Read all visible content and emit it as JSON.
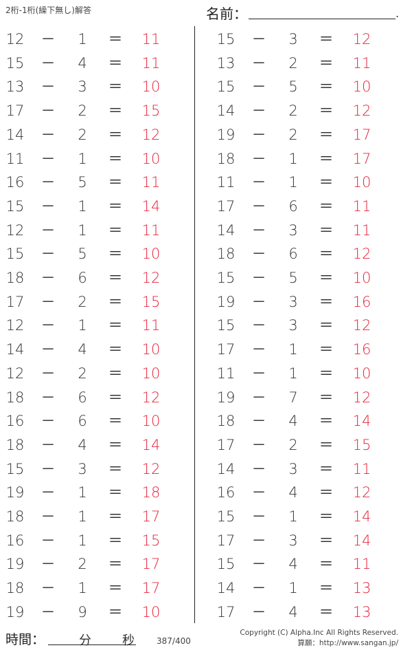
{
  "header": {
    "title": "2桁-1桁(繰下無し)解答",
    "name_label": "名前：",
    "name_end": "."
  },
  "colors": {
    "answer": "#e8223a",
    "text": "#333333"
  },
  "symbols": {
    "minus": "－",
    "equals": "＝"
  },
  "left_column": [
    {
      "a": "12",
      "b": "1",
      "ans": "11"
    },
    {
      "a": "15",
      "b": "4",
      "ans": "11"
    },
    {
      "a": "13",
      "b": "3",
      "ans": "10"
    },
    {
      "a": "17",
      "b": "2",
      "ans": "15"
    },
    {
      "a": "14",
      "b": "2",
      "ans": "12"
    },
    {
      "a": "11",
      "b": "1",
      "ans": "10"
    },
    {
      "a": "16",
      "b": "5",
      "ans": "11"
    },
    {
      "a": "15",
      "b": "1",
      "ans": "14"
    },
    {
      "a": "12",
      "b": "1",
      "ans": "11"
    },
    {
      "a": "15",
      "b": "5",
      "ans": "10"
    },
    {
      "a": "18",
      "b": "6",
      "ans": "12"
    },
    {
      "a": "17",
      "b": "2",
      "ans": "15"
    },
    {
      "a": "12",
      "b": "1",
      "ans": "11"
    },
    {
      "a": "14",
      "b": "4",
      "ans": "10"
    },
    {
      "a": "12",
      "b": "2",
      "ans": "10"
    },
    {
      "a": "18",
      "b": "6",
      "ans": "12"
    },
    {
      "a": "16",
      "b": "6",
      "ans": "10"
    },
    {
      "a": "18",
      "b": "4",
      "ans": "14"
    },
    {
      "a": "15",
      "b": "3",
      "ans": "12"
    },
    {
      "a": "19",
      "b": "1",
      "ans": "18"
    },
    {
      "a": "18",
      "b": "1",
      "ans": "17"
    },
    {
      "a": "16",
      "b": "1",
      "ans": "15"
    },
    {
      "a": "19",
      "b": "2",
      "ans": "17"
    },
    {
      "a": "18",
      "b": "1",
      "ans": "17"
    },
    {
      "a": "19",
      "b": "9",
      "ans": "10"
    }
  ],
  "right_column": [
    {
      "a": "15",
      "b": "3",
      "ans": "12"
    },
    {
      "a": "13",
      "b": "2",
      "ans": "11"
    },
    {
      "a": "15",
      "b": "5",
      "ans": "10"
    },
    {
      "a": "14",
      "b": "2",
      "ans": "12"
    },
    {
      "a": "19",
      "b": "2",
      "ans": "17"
    },
    {
      "a": "18",
      "b": "1",
      "ans": "17"
    },
    {
      "a": "11",
      "b": "1",
      "ans": "10"
    },
    {
      "a": "17",
      "b": "6",
      "ans": "11"
    },
    {
      "a": "14",
      "b": "3",
      "ans": "11"
    },
    {
      "a": "18",
      "b": "6",
      "ans": "12"
    },
    {
      "a": "15",
      "b": "5",
      "ans": "10"
    },
    {
      "a": "19",
      "b": "3",
      "ans": "16"
    },
    {
      "a": "15",
      "b": "3",
      "ans": "12"
    },
    {
      "a": "17",
      "b": "1",
      "ans": "16"
    },
    {
      "a": "11",
      "b": "1",
      "ans": "10"
    },
    {
      "a": "19",
      "b": "7",
      "ans": "12"
    },
    {
      "a": "18",
      "b": "4",
      "ans": "14"
    },
    {
      "a": "17",
      "b": "2",
      "ans": "15"
    },
    {
      "a": "14",
      "b": "3",
      "ans": "11"
    },
    {
      "a": "16",
      "b": "4",
      "ans": "12"
    },
    {
      "a": "15",
      "b": "1",
      "ans": "14"
    },
    {
      "a": "17",
      "b": "3",
      "ans": "14"
    },
    {
      "a": "15",
      "b": "4",
      "ans": "11"
    },
    {
      "a": "14",
      "b": "1",
      "ans": "13"
    },
    {
      "a": "17",
      "b": "4",
      "ans": "13"
    }
  ],
  "footer": {
    "time_label": "時間：",
    "minutes_label": "分",
    "seconds_label": "秒",
    "page": "387/400",
    "copyright": "Copyright (C) Alpha.Inc All Rights Reserved.",
    "source": "算願：http://www.sangan.jp/"
  }
}
